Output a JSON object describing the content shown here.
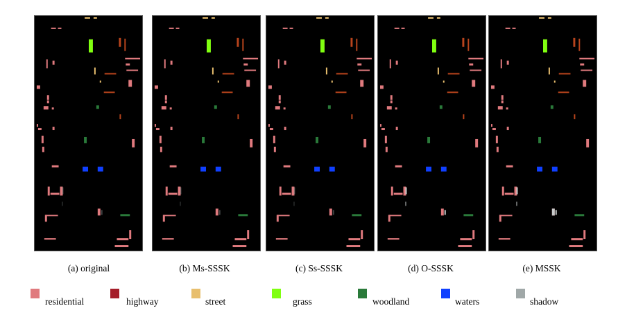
{
  "panels": [
    {
      "id": "a",
      "caption": "(a) original"
    },
    {
      "id": "b",
      "caption": "(b) Ms-SSSK"
    },
    {
      "id": "c",
      "caption": "(c) Ss-SSSK"
    },
    {
      "id": "d",
      "caption": "(d) O-SSSK"
    },
    {
      "id": "e",
      "caption": "(e) MSSK"
    }
  ],
  "legend": [
    {
      "label": "residential",
      "color": "#e07a7e"
    },
    {
      "label": "highway",
      "color": "#a51e2a"
    },
    {
      "label": "street",
      "color": "#e8bf6e"
    },
    {
      "label": "grass",
      "color": "#80ff10"
    },
    {
      "label": "woodland",
      "color": "#2a7a3a"
    },
    {
      "label": "waters",
      "color": "#1040ff"
    },
    {
      "label": "shadow",
      "color": "#a0a8a8"
    }
  ]
}
